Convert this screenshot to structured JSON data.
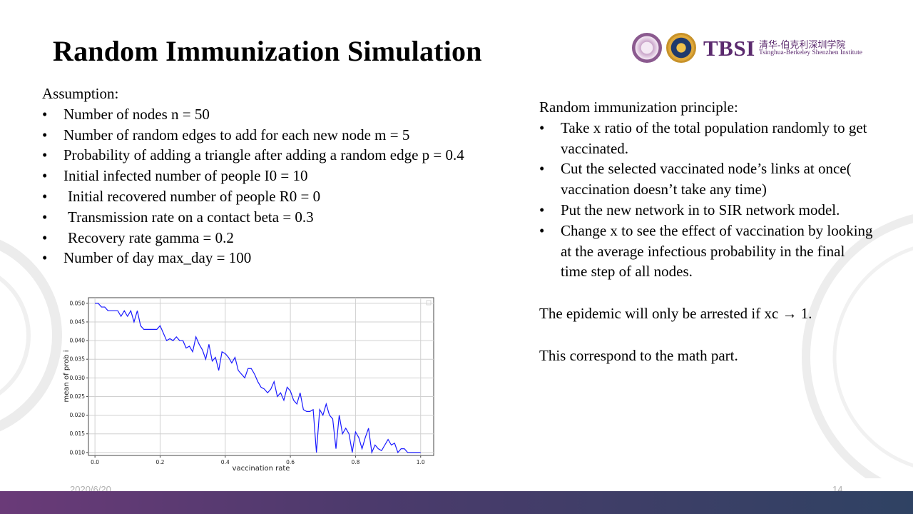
{
  "slide": {
    "title": "Random Immunization Simulation",
    "date": "2020/6/20",
    "page_number": "14"
  },
  "logo": {
    "tbsi": "TBSI",
    "chinese_name": "清华-伯克利深圳学院",
    "english_name": "Tsinghua-Berkeley Shenzhen Institute"
  },
  "assumptions": {
    "heading": "Assumption:",
    "items": [
      "Number of nodes  n = 50",
      "Number of random edges to add for each new node m = 5",
      "Probability of adding a triangle after adding a random edge  p = 0.4",
      "Initial infected number of people I0 = 10",
      " Initial recovered number of people R0 = 0",
      " Transmission rate on a contact beta = 0.3",
      " Recovery rate gamma = 0.2",
      "Number of day max_day = 100"
    ]
  },
  "principle": {
    "heading": "Random immunization  principle:",
    "items": [
      "Take x ratio of the total population randomly to get vaccinated.",
      "Cut the selected vaccinated node’s links at once( vaccination doesn’t take any time)",
      "Put the new  network in to SIR network model.",
      "Change x to see the effect of vaccination by looking at the average infectious probability in the final time step of all nodes."
    ],
    "conclusion": "The epidemic will only be arrested if xc → 1.",
    "note": "This correspond to the math part."
  },
  "chart_data": {
    "type": "line",
    "title": "",
    "xlabel": "vaccination rate",
    "ylabel": "mean of prob i",
    "xlim": [
      -0.02,
      1.04
    ],
    "ylim": [
      0.0092,
      0.0515
    ],
    "xticks": [
      "0.0",
      "0.2",
      "0.4",
      "0.6",
      "0.8",
      "1.0"
    ],
    "xtick_values": [
      0.0,
      0.2,
      0.4,
      0.6,
      0.8,
      1.0
    ],
    "yticks": [
      "0.010",
      "0.015",
      "0.020",
      "0.025",
      "0.030",
      "0.035",
      "0.040",
      "0.045",
      "0.050"
    ],
    "ytick_values": [
      0.01,
      0.015,
      0.02,
      0.025,
      0.03,
      0.035,
      0.04,
      0.045,
      0.05
    ],
    "grid": true,
    "color": "#1a1aff",
    "series": [
      {
        "name": "mean of prob i",
        "x": [
          0.0,
          0.01,
          0.02,
          0.03,
          0.04,
          0.05,
          0.06,
          0.07,
          0.08,
          0.09,
          0.1,
          0.11,
          0.12,
          0.13,
          0.14,
          0.15,
          0.16,
          0.17,
          0.18,
          0.19,
          0.2,
          0.21,
          0.22,
          0.23,
          0.24,
          0.25,
          0.26,
          0.27,
          0.28,
          0.29,
          0.3,
          0.31,
          0.32,
          0.33,
          0.34,
          0.35,
          0.36,
          0.37,
          0.38,
          0.39,
          0.4,
          0.41,
          0.42,
          0.43,
          0.44,
          0.45,
          0.46,
          0.47,
          0.48,
          0.49,
          0.5,
          0.51,
          0.52,
          0.53,
          0.54,
          0.55,
          0.56,
          0.57,
          0.58,
          0.59,
          0.6,
          0.61,
          0.62,
          0.63,
          0.64,
          0.65,
          0.66,
          0.67,
          0.68,
          0.69,
          0.7,
          0.71,
          0.72,
          0.73,
          0.74,
          0.75,
          0.76,
          0.77,
          0.78,
          0.79,
          0.8,
          0.81,
          0.82,
          0.83,
          0.84,
          0.85,
          0.86,
          0.87,
          0.88,
          0.89,
          0.9,
          0.91,
          0.92,
          0.93,
          0.94,
          0.95,
          0.96,
          0.97,
          0.98,
          0.99,
          1.0
        ],
        "values": [
          0.05,
          0.05,
          0.049,
          0.049,
          0.048,
          0.048,
          0.048,
          0.048,
          0.0465,
          0.048,
          0.0465,
          0.048,
          0.045,
          0.048,
          0.044,
          0.043,
          0.043,
          0.043,
          0.043,
          0.043,
          0.044,
          0.042,
          0.04,
          0.0405,
          0.04,
          0.041,
          0.04,
          0.04,
          0.038,
          0.0385,
          0.037,
          0.041,
          0.039,
          0.0375,
          0.035,
          0.039,
          0.0345,
          0.0355,
          0.032,
          0.037,
          0.0365,
          0.0355,
          0.034,
          0.0355,
          0.032,
          0.031,
          0.03,
          0.0325,
          0.0325,
          0.031,
          0.029,
          0.0275,
          0.027,
          0.026,
          0.027,
          0.029,
          0.025,
          0.026,
          0.024,
          0.0275,
          0.0265,
          0.024,
          0.023,
          0.026,
          0.0215,
          0.021,
          0.021,
          0.0215,
          0.01,
          0.0215,
          0.02,
          0.023,
          0.02,
          0.019,
          0.011,
          0.02,
          0.015,
          0.0165,
          0.015,
          0.01,
          0.0155,
          0.014,
          0.011,
          0.014,
          0.0165,
          0.01,
          0.012,
          0.011,
          0.0105,
          0.012,
          0.0135,
          0.012,
          0.0125,
          0.01,
          0.011,
          0.011,
          0.01,
          0.01,
          0.01,
          0.01,
          0.01
        ]
      }
    ]
  }
}
